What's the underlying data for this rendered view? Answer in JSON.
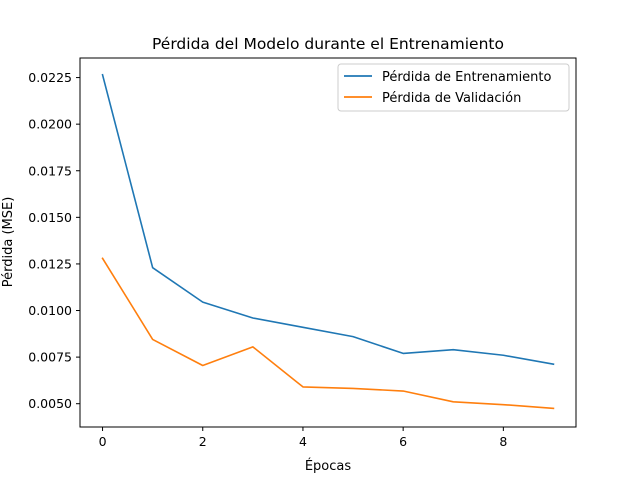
{
  "chart_data": {
    "type": "line",
    "title": "Pérdida del Modelo durante el Entrenamiento",
    "xlabel": "Épocas",
    "ylabel": "Pérdida (MSE)",
    "x": [
      0,
      1,
      2,
      3,
      4,
      5,
      6,
      7,
      8,
      9
    ],
    "xlim": [
      -0.45,
      9.45
    ],
    "ylim": [
      0.00375,
      0.02355
    ],
    "x_ticks": [
      0,
      2,
      4,
      6,
      8
    ],
    "x_tick_labels": [
      "0",
      "2",
      "4",
      "6",
      "8"
    ],
    "y_ticks": [
      0.005,
      0.0075,
      0.01,
      0.0125,
      0.015,
      0.0175,
      0.02,
      0.0225
    ],
    "y_tick_labels": [
      "0.0050",
      "0.0075",
      "0.0100",
      "0.0125",
      "0.0150",
      "0.0175",
      "0.0200",
      "0.0225"
    ],
    "grid": false,
    "legend_position": "top-right",
    "series": [
      {
        "name": "Pérdida de Entrenamiento",
        "color": "#1f77b4",
        "values": [
          0.02265,
          0.0123,
          0.01045,
          0.0096,
          0.0091,
          0.0086,
          0.0077,
          0.0079,
          0.0076,
          0.00712
        ]
      },
      {
        "name": "Pérdida de Validación",
        "color": "#ff7f0e",
        "values": [
          0.0128,
          0.00845,
          0.00705,
          0.00805,
          0.0059,
          0.00582,
          0.00568,
          0.0051,
          0.00495,
          0.00475
        ]
      }
    ]
  }
}
